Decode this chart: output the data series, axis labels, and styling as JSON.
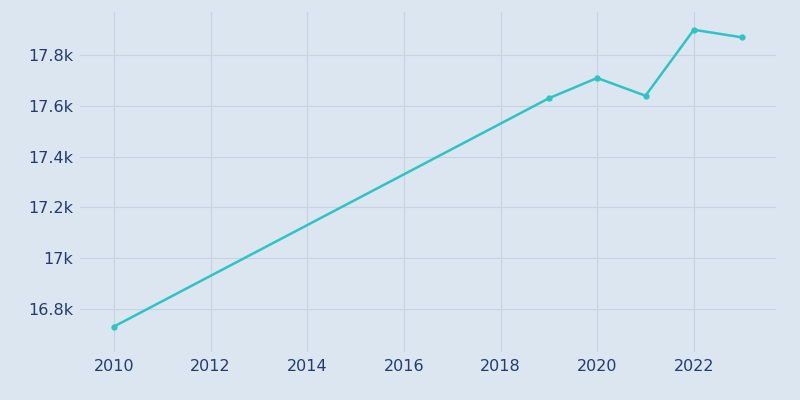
{
  "years": [
    2010,
    2019,
    2020,
    2021,
    2022,
    2023
  ],
  "population": [
    16730,
    17630,
    17710,
    17640,
    17900,
    17870
  ],
  "line_color": "#2ec4c4",
  "line_width": 1.8,
  "axes_facecolor": "#dce6f0",
  "figure_facecolor": "#dce6f0",
  "tick_label_color": "#253a6e",
  "grid_color": "#c5d3e3",
  "xlim": [
    2009.3,
    2023.7
  ],
  "ylim": [
    16630,
    17970
  ],
  "xtick_positions": [
    2010,
    2012,
    2014,
    2016,
    2018,
    2020,
    2022
  ],
  "xtick_labels": [
    "2010",
    "2012",
    "2014",
    "2016",
    "2018",
    "2020",
    "2022"
  ],
  "ytick_positions": [
    16800,
    17000,
    17200,
    17400,
    17600,
    17800
  ],
  "ytick_labels": [
    "16.8k",
    "17k",
    "17.2k",
    "17.4k",
    "17.6k",
    "17.8k"
  ],
  "tick_fontsize": 11.5,
  "marker_size": 3.5
}
